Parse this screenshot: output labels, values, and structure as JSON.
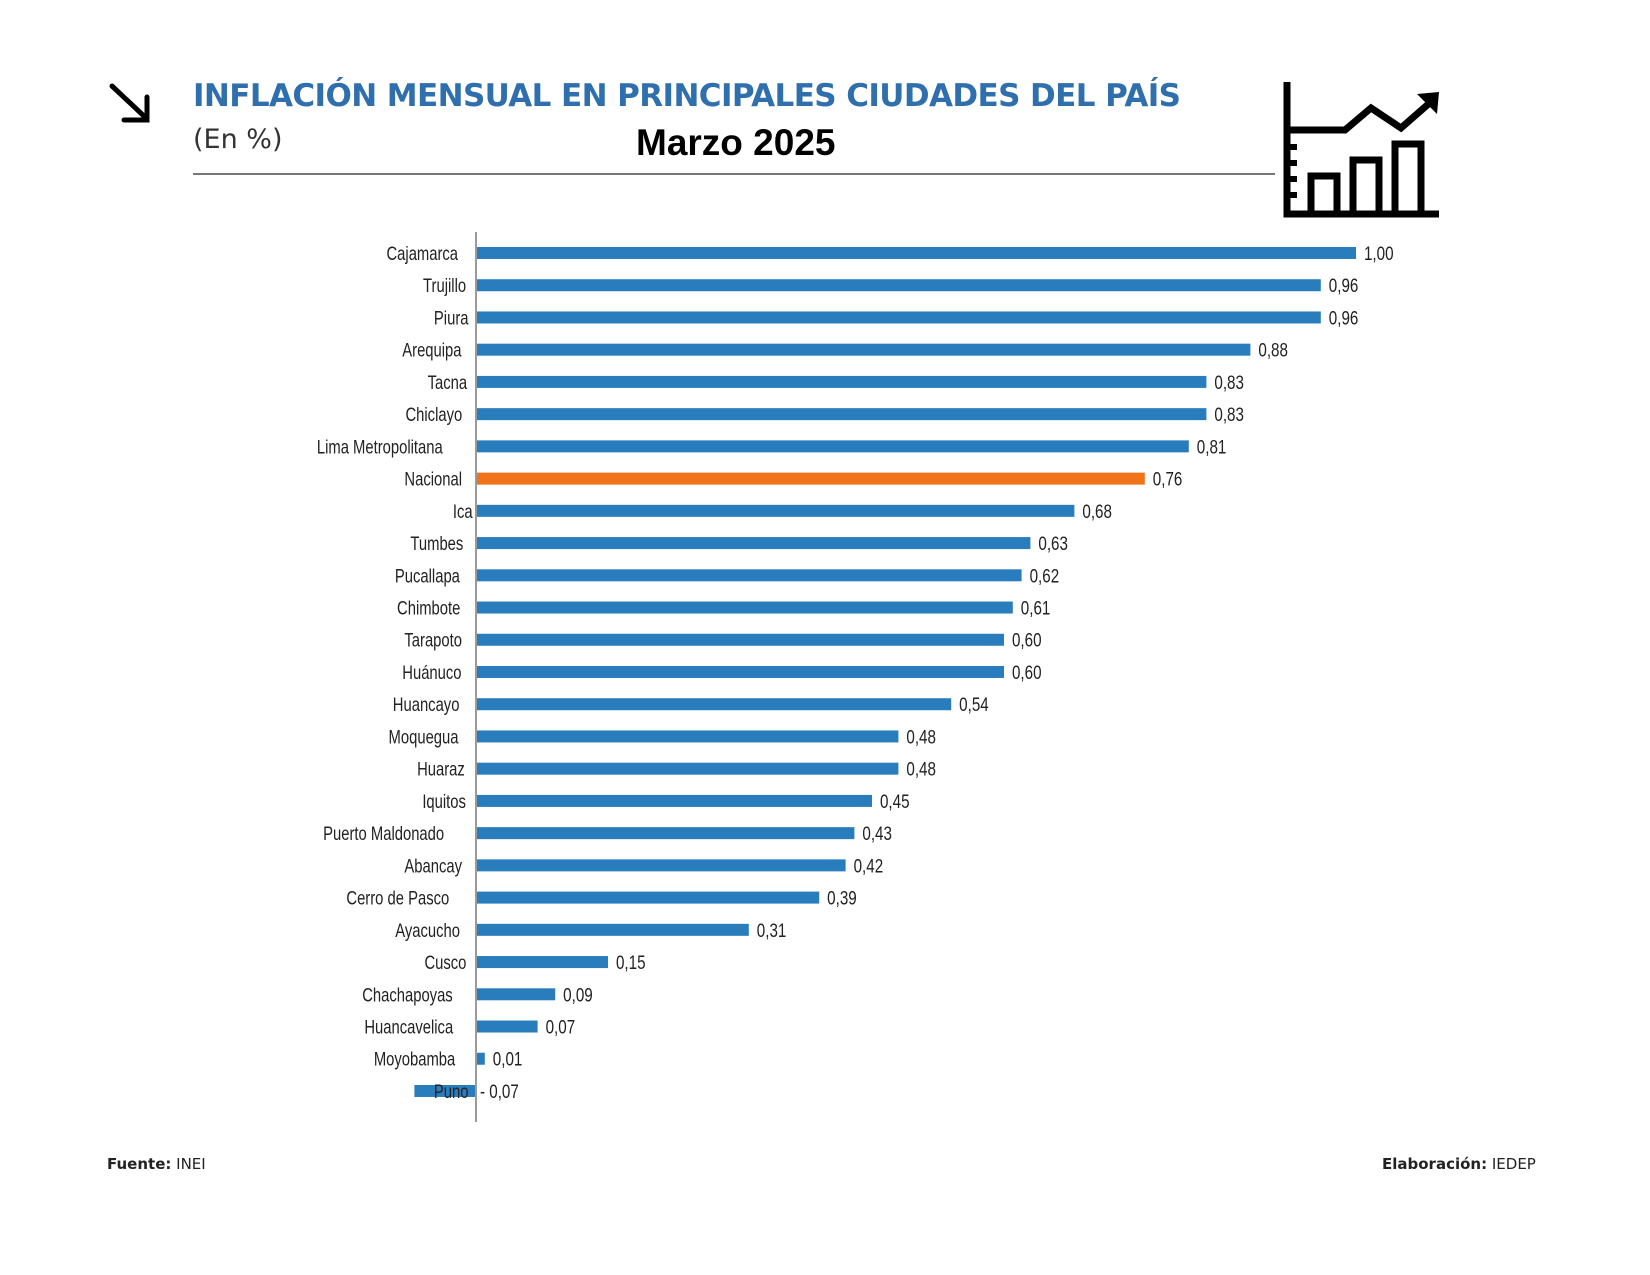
{
  "header": {
    "title": "INFLACIÓN MENSUAL EN PRINCIPALES CIUDADES DEL PAÍS",
    "subtitle": "(En %)",
    "period": "Marzo 2025",
    "icons": [
      "arrow-down-right-icon",
      "chart-growth-icon"
    ]
  },
  "footer": {
    "source_label": "Fuente:",
    "source_value": " INEI",
    "credit_label": "Elaboración:",
    "credit_value": " IEDEP"
  },
  "colors": {
    "bar": "#2a7dbd",
    "highlight": "#f0731a",
    "title": "#2f6fad",
    "axis": "#9a9a9a"
  },
  "chart_data": {
    "type": "bar",
    "orientation": "horizontal",
    "title": "INFLACIÓN MENSUAL EN PRINCIPALES CIUDADES DEL PAÍS",
    "subtitle": "(En %) Marzo 2025",
    "xlabel": "",
    "ylabel": "",
    "xlim": [
      -0.07,
      1.0
    ],
    "grid": false,
    "legend": "none",
    "highlight_category": "Nacional",
    "categories": [
      "Cajamarca",
      "Trujillo",
      "Piura",
      "Arequipa",
      "Tacna",
      "Chiclayo",
      "Lima Metropolitana",
      "Nacional",
      "Ica",
      "Tumbes",
      "Pucallapa",
      "Chimbote",
      "Tarapoto",
      "Huánuco",
      "Huancayo",
      "Moquegua",
      "Huaraz",
      "Iquitos",
      "Puerto Maldonado",
      "Abancay",
      "Cerro de Pasco",
      "Ayacucho",
      "Cusco",
      "Chachapoyas",
      "Huancavelica",
      "Moyobamba",
      "Puno"
    ],
    "values": [
      1.0,
      0.96,
      0.96,
      0.88,
      0.83,
      0.83,
      0.81,
      0.76,
      0.68,
      0.63,
      0.62,
      0.61,
      0.6,
      0.6,
      0.54,
      0.48,
      0.48,
      0.45,
      0.43,
      0.42,
      0.39,
      0.31,
      0.15,
      0.09,
      0.07,
      0.01,
      -0.07
    ],
    "value_labels": [
      "1,00",
      "0,96",
      "0,96",
      "0,88",
      "0,83",
      "0,83",
      "0,81",
      "0,76",
      "0,68",
      "0,63",
      "0,62",
      "0,61",
      "0,60",
      "0,60",
      "0,54",
      "0,48",
      "0,48",
      "0,45",
      "0,43",
      "0,42",
      "0,39",
      "0,31",
      "0,15",
      "0,09",
      "0,07",
      "0,01",
      "- 0,07"
    ]
  }
}
